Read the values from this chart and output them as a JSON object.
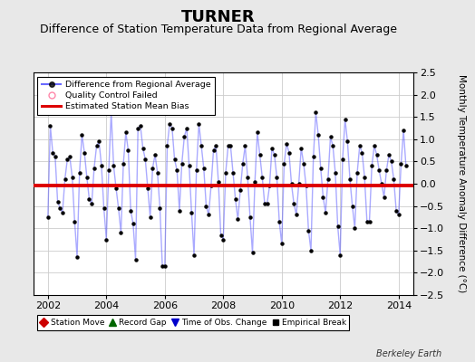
{
  "title": "TURNER",
  "subtitle": "Difference of Station Temperature Data from Regional Average",
  "ylabel": "Monthly Temperature Anomaly Difference (°C)",
  "xlim": [
    2001.5,
    2014.5
  ],
  "ylim": [
    -2.5,
    2.5
  ],
  "yticks": [
    -2.5,
    -2,
    -1.5,
    -1,
    -0.5,
    0,
    0.5,
    1,
    1.5,
    2,
    2.5
  ],
  "xticks": [
    2002,
    2004,
    2006,
    2008,
    2010,
    2012,
    2014
  ],
  "bias_value": -0.05,
  "background_color": "#e8e8e8",
  "plot_bg_color": "#ffffff",
  "line_color": "#4444ff",
  "line_alpha": 0.45,
  "marker_color": "#000000",
  "bias_color": "#dd0000",
  "grid_color": "#cccccc",
  "title_fontsize": 13,
  "subtitle_fontsize": 9,
  "axis_fontsize": 8,
  "ylabel_fontsize": 7.5,
  "watermark": "Berkeley Earth",
  "monthly_data": [
    -0.75,
    1.3,
    0.7,
    0.6,
    -0.4,
    -0.55,
    -0.65,
    0.1,
    0.55,
    0.6,
    0.15,
    -0.85,
    -1.65,
    0.25,
    1.1,
    0.7,
    0.15,
    -0.35,
    -0.45,
    0.35,
    0.85,
    0.95,
    0.4,
    -0.55,
    -1.25,
    0.3,
    1.6,
    0.4,
    -0.1,
    -0.55,
    -1.1,
    0.45,
    1.15,
    0.75,
    -0.6,
    -0.9,
    -1.7,
    1.25,
    1.3,
    0.8,
    0.55,
    -0.1,
    -0.75,
    0.35,
    0.65,
    0.25,
    -0.55,
    -1.85,
    -1.85,
    0.85,
    1.35,
    1.25,
    0.55,
    0.3,
    -0.6,
    0.45,
    1.05,
    1.25,
    0.4,
    -0.65,
    -1.6,
    0.3,
    1.35,
    0.85,
    0.35,
    -0.5,
    -0.7,
    -0.05,
    0.75,
    0.85,
    0.05,
    -1.15,
    -1.25,
    0.25,
    0.85,
    0.85,
    0.25,
    -0.35,
    -0.8,
    -0.15,
    0.45,
    0.85,
    0.15,
    -0.75,
    -1.55,
    0.05,
    1.15,
    0.65,
    0.15,
    -0.45,
    -0.45,
    -0.05,
    0.8,
    0.65,
    0.15,
    -0.85,
    -1.35,
    0.45,
    0.9,
    0.7,
    0.0,
    -0.45,
    -0.7,
    0.0,
    0.8,
    0.45,
    -0.05,
    -1.05,
    -1.5,
    0.6,
    1.6,
    1.1,
    0.35,
    -0.3,
    -0.65,
    0.1,
    1.05,
    0.85,
    0.25,
    -0.95,
    -1.6,
    0.55,
    1.45,
    0.95,
    0.1,
    -0.5,
    -1.0,
    0.25,
    0.85,
    0.7,
    0.15,
    -0.85,
    -0.85,
    0.4,
    0.85,
    0.65,
    0.3,
    0.0,
    -0.3,
    0.3,
    0.65,
    0.5,
    0.1,
    -0.6,
    -0.7,
    0.45,
    1.2,
    0.4
  ],
  "start_year": 2002,
  "start_month": 1
}
